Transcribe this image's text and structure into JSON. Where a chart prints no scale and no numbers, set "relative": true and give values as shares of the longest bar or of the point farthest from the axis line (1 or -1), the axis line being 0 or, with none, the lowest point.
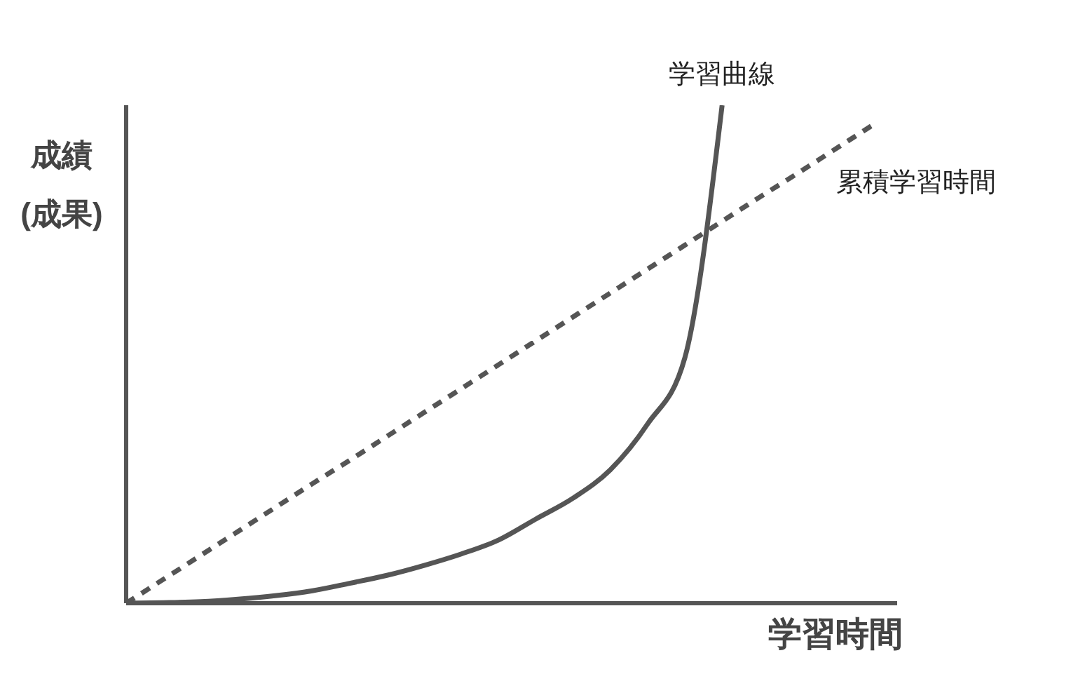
{
  "chart_data": {
    "type": "line",
    "relative": true,
    "xlabel": "学習時間",
    "ylabel": "成績\n(成果)",
    "categories": [
      null,
      null,
      null,
      null,
      null,
      null,
      null,
      null,
      null,
      null,
      null,
      null,
      null,
      null,
      null,
      null,
      null,
      null,
      null,
      null,
      null
    ],
    "series": [
      {
        "name": "学習曲線",
        "color": "#555555",
        "line_style": "solid",
        "values": [
          0,
          0.001,
          0.003,
          0.008,
          0.015,
          0.025,
          0.04,
          0.056,
          0.076,
          0.099,
          0.127,
          0.169,
          0.211,
          0.268,
          0.36,
          0.493,
          1,
          null,
          null,
          null,
          null
        ]
      },
      {
        "name": "累積学習時間",
        "color": "#555555",
        "line_style": "dashed",
        "values": [
          0,
          0.048,
          0.096,
          0.144,
          0.192,
          0.24,
          0.287,
          0.335,
          0.383,
          0.431,
          0.479,
          0.527,
          0.575,
          0.623,
          0.671,
          0.719,
          0.767,
          0.815,
          0.862,
          0.91,
          0.958
        ]
      }
    ],
    "grid": false,
    "legend": false,
    "marker": "none"
  }
}
